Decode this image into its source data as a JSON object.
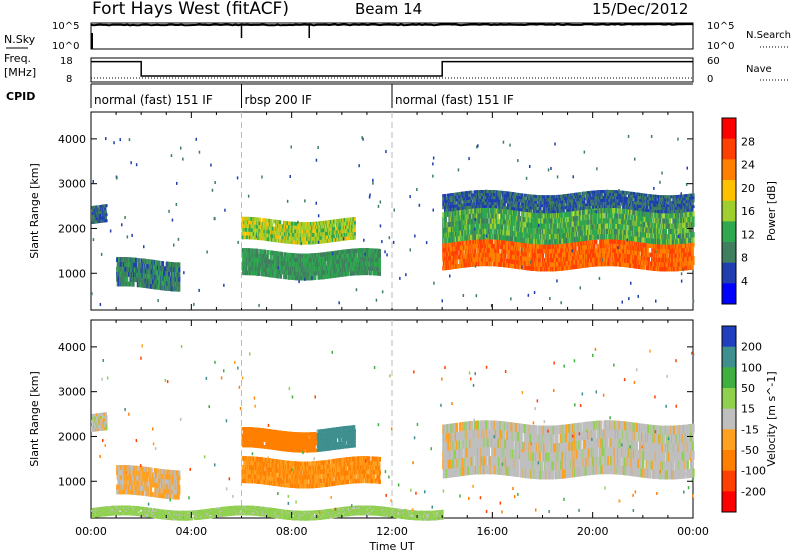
{
  "header": {
    "station": "Fort Hays West (fitACF)",
    "beam": "Beam 14",
    "date": "15/Dec/2012"
  },
  "panels": {
    "sky_search": {
      "left_label": "N.Sky",
      "right_label": "N.Search",
      "left_ticks": [
        "10^5",
        "10^0"
      ],
      "right_ticks": [
        "10^5",
        "10^0"
      ]
    },
    "freq_nave": {
      "left_label_1": "Freq.",
      "left_label_2": "[MHz]",
      "right_label": "Nave",
      "left_ticks": [
        "18",
        "8"
      ],
      "right_ticks": [
        "60",
        "0"
      ]
    },
    "cpid": {
      "label": "CPID",
      "segments": [
        {
          "name": "normal (fast) 151 IF",
          "start": 0,
          "end": 6
        },
        {
          "name": "rbsp 200 IF",
          "start": 6,
          "end": 12
        },
        {
          "name": "normal (fast) 151 IF",
          "start": 12,
          "end": 24
        }
      ]
    }
  },
  "colors": {
    "power_scale": [
      "#0000ff",
      "#1f3fb0",
      "#3f7f5f",
      "#2fa84f",
      "#9fcf2f",
      "#ffc000",
      "#ff8000",
      "#ff4000",
      "#ff0000"
    ],
    "velocity_scale": [
      "#1f3fbf",
      "#3f8f8f",
      "#3fb03f",
      "#8fd04f",
      "#bfbfbf",
      "#ffa020",
      "#ff7f00",
      "#ff4000",
      "#ff0000"
    ],
    "line": "#000000",
    "dashed": "#bbbbbb"
  },
  "chart_data": [
    {
      "type": "line",
      "title": "",
      "ylabel": "N.Sky",
      "y2label": "N.Search",
      "x": [
        0,
        2,
        4,
        6,
        8,
        10,
        12,
        14,
        16,
        18,
        20,
        22,
        24
      ],
      "series": [
        {
          "name": "N.Sky",
          "values": [
            40000,
            42000,
            43000,
            45000,
            44000,
            46000,
            45000,
            47000,
            48000,
            50000,
            52000,
            55000,
            60000
          ]
        }
      ],
      "ylim": [
        1,
        100000
      ],
      "yscale": "log",
      "xlim": [
        0,
        24
      ]
    },
    {
      "type": "line",
      "ylabel": "Freq. [MHz]",
      "y2label": "Nave",
      "x": [
        0,
        2,
        2,
        6,
        6,
        12,
        12,
        14,
        14,
        24
      ],
      "series": [
        {
          "name": "Freq. [MHz]",
          "values": [
            16.5,
            16.5,
            10.5,
            10.5,
            10.5,
            10.5,
            10.5,
            10.5,
            16.5,
            16.5
          ]
        },
        {
          "name": "Nave",
          "values": [
            10,
            10,
            10,
            10,
            10,
            10,
            10,
            10,
            10,
            10
          ]
        }
      ],
      "ylim": [
        8,
        18
      ],
      "y2lim": [
        0,
        60
      ],
      "xlim": [
        0,
        24
      ]
    },
    {
      "type": "heatmap",
      "ylabel": "Slant Range [km]",
      "colorbar_label": "Power [dB]",
      "colorbar_ticks": [
        4,
        8,
        12,
        16,
        20,
        24,
        28
      ],
      "ylim": [
        180,
        4600
      ],
      "yticks": [
        1000,
        2000,
        3000,
        4000
      ],
      "xlim": [
        0,
        24
      ],
      "regions": [
        {
          "t_start": 0.0,
          "t_end": 0.6,
          "range_low": 2100,
          "range_high": 2500,
          "power": 6
        },
        {
          "t_start": 1.0,
          "t_end": 3.5,
          "range_low": 650,
          "range_high": 1300,
          "power": 8
        },
        {
          "t_start": 6.0,
          "t_end": 10.5,
          "range_low": 1700,
          "range_high": 2200,
          "power": 16
        },
        {
          "t_start": 6.0,
          "t_end": 11.5,
          "range_low": 900,
          "range_high": 1500,
          "power": 10
        },
        {
          "t_start": 14.0,
          "t_end": 24.0,
          "range_low": 1100,
          "range_high": 1700,
          "power": 26
        },
        {
          "t_start": 14.0,
          "t_end": 24.0,
          "range_low": 1700,
          "range_high": 2400,
          "power": 12
        },
        {
          "t_start": 14.0,
          "t_end": 24.0,
          "range_low": 2400,
          "range_high": 2800,
          "power": 6
        }
      ]
    },
    {
      "type": "heatmap",
      "ylabel": "Slant Range [km]",
      "xlabel": "Time UT",
      "colorbar_label": "Velocity [m s^-1]",
      "colorbar_ticks": [
        200,
        100,
        50,
        15,
        -15,
        -50,
        -100,
        -200
      ],
      "ylim": [
        180,
        4600
      ],
      "yticks": [
        1000,
        2000,
        3000,
        4000
      ],
      "xlim": [
        0,
        24
      ],
      "xticks": [
        "00:00",
        "04:00",
        "08:00",
        "12:00",
        "16:00",
        "20:00",
        "00:00"
      ],
      "regions": [
        {
          "t_start": 0.0,
          "t_end": 0.6,
          "range_low": 2100,
          "range_high": 2500,
          "velocity": 0
        },
        {
          "t_start": 1.0,
          "t_end": 3.5,
          "range_low": 650,
          "range_high": 1300,
          "velocity": -20
        },
        {
          "t_start": 6.0,
          "t_end": 9.0,
          "range_low": 1700,
          "range_high": 2150,
          "velocity": -70
        },
        {
          "t_start": 9.0,
          "t_end": 10.5,
          "range_low": 1700,
          "range_high": 2200,
          "velocity": 120
        },
        {
          "t_start": 6.0,
          "t_end": 11.5,
          "range_low": 900,
          "range_high": 1500,
          "velocity": -50
        },
        {
          "t_start": 14.0,
          "t_end": 24.0,
          "range_low": 1100,
          "range_high": 2300,
          "velocity": 0
        },
        {
          "t_start": 0.0,
          "t_end": 14.0,
          "range_low": 180,
          "range_high": 400,
          "velocity": 30
        }
      ]
    }
  ]
}
